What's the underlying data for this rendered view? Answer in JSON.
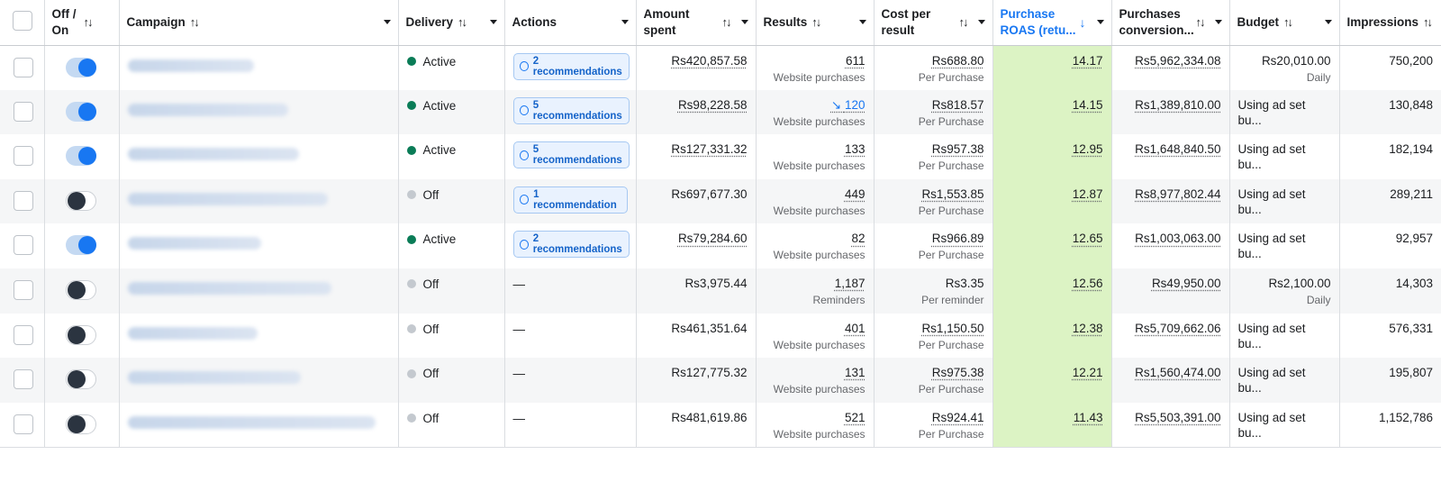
{
  "columns": {
    "onoff": "Off / On",
    "campaign": "Campaign",
    "delivery": "Delivery",
    "actions": "Actions",
    "amount_spent": "Amount spent",
    "results": "Results",
    "cost_per_result": "Cost per result",
    "roas": "Purchase ROAS (retu...",
    "purchases_conversion": "Purchases conversion...",
    "budget": "Budget",
    "impressions": "Impressions"
  },
  "rows": [
    {
      "toggle": "on",
      "delivery": "Active",
      "action": "2 recommendations",
      "amount": "Rs420,857.58",
      "results": "611",
      "results_sub": "Website purchases",
      "cost": "Rs688.80",
      "cost_sub": "Per Purchase",
      "roas": "14.17",
      "conv": "Rs5,962,334.08",
      "budget": "Rs20,010.00",
      "budget_sub": "Daily",
      "impressions": "750,200"
    },
    {
      "toggle": "on",
      "delivery": "Active",
      "action": "5 recommendations",
      "amount": "Rs98,228.58",
      "results": "120",
      "results_trend": true,
      "results_sub": "Website purchases",
      "cost": "Rs818.57",
      "cost_sub": "Per Purchase",
      "roas": "14.15",
      "conv": "Rs1,389,810.00",
      "budget": "Using ad set bu...",
      "budget_sub": "",
      "impressions": "130,848"
    },
    {
      "toggle": "on",
      "delivery": "Active",
      "action": "5 recommendations",
      "amount": "Rs127,331.32",
      "results": "133",
      "results_sub": "Website purchases",
      "cost": "Rs957.38",
      "cost_sub": "Per Purchase",
      "roas": "12.95",
      "conv": "Rs1,648,840.50",
      "budget": "Using ad set bu...",
      "budget_sub": "",
      "impressions": "182,194"
    },
    {
      "toggle": "off",
      "delivery": "Off",
      "action": "1 recommendation",
      "amount": "Rs697,677.30",
      "results": "449",
      "results_sub": "Website purchases",
      "cost": "Rs1,553.85",
      "cost_sub": "Per Purchase",
      "roas": "12.87",
      "conv": "Rs8,977,802.44",
      "budget": "Using ad set bu...",
      "budget_sub": "",
      "impressions": "289,211"
    },
    {
      "toggle": "on",
      "delivery": "Active",
      "action": "2 recommendations",
      "amount": "Rs79,284.60",
      "results": "82",
      "results_sub": "Website purchases",
      "cost": "Rs966.89",
      "cost_sub": "Per Purchase",
      "roas": "12.65",
      "conv": "Rs1,003,063.00",
      "budget": "Using ad set bu...",
      "budget_sub": "",
      "impressions": "92,957"
    },
    {
      "toggle": "off",
      "delivery": "Off",
      "action": "—",
      "amount": "Rs3,975.44",
      "results": "1,187",
      "results_sub": "Reminders",
      "cost": "Rs3.35",
      "cost_sub": "Per reminder",
      "roas": "12.56",
      "conv": "Rs49,950.00",
      "budget": "Rs2,100.00",
      "budget_sub": "Daily",
      "impressions": "14,303"
    },
    {
      "toggle": "off",
      "delivery": "Off",
      "action": "—",
      "amount": "Rs461,351.64",
      "results": "401",
      "results_sub": "Website purchases",
      "cost": "Rs1,150.50",
      "cost_sub": "Per Purchase",
      "roas": "12.38",
      "conv": "Rs5,709,662.06",
      "budget": "Using ad set bu...",
      "budget_sub": "",
      "impressions": "576,331"
    },
    {
      "toggle": "off",
      "delivery": "Off",
      "action": "—",
      "amount": "Rs127,775.32",
      "results": "131",
      "results_sub": "Website purchases",
      "cost": "Rs975.38",
      "cost_sub": "Per Purchase",
      "roas": "12.21",
      "conv": "Rs1,560,474.00",
      "budget": "Using ad set bu...",
      "budget_sub": "",
      "impressions": "195,807"
    },
    {
      "toggle": "off",
      "delivery": "Off",
      "action": "—",
      "amount": "Rs481,619.86",
      "results": "521",
      "results_sub": "Website purchases",
      "cost": "Rs924.41",
      "cost_sub": "Per Purchase",
      "roas": "11.43",
      "conv": "Rs5,503,391.00",
      "budget": "Using ad set bu...",
      "budget_sub": "",
      "impressions": "1,152,786"
    }
  ],
  "colors": {
    "accent": "#1877f2",
    "active": "#0a7c57",
    "highlight": "#dcf3c4"
  }
}
